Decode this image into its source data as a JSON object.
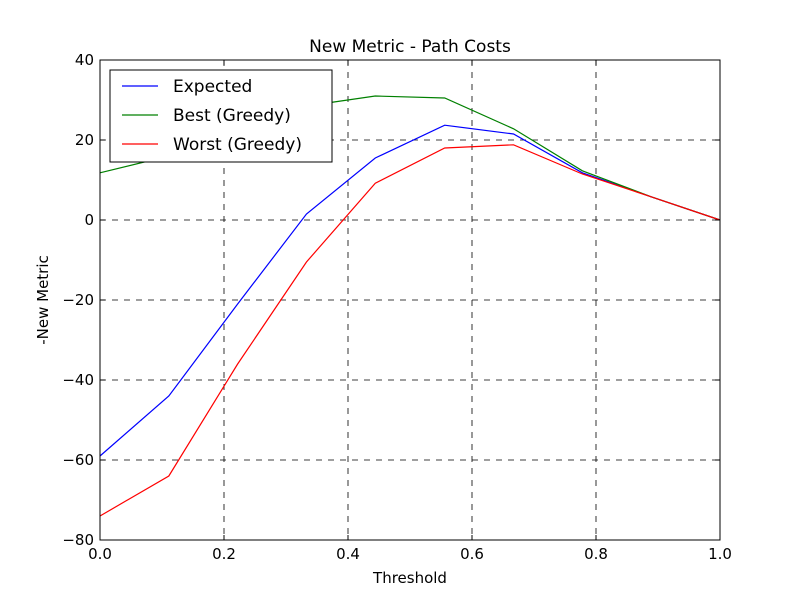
{
  "chart_data": {
    "type": "line",
    "title": "New Metric - Path Costs",
    "xlabel": "Threshold",
    "ylabel": "-New Metric",
    "xlim": [
      0.0,
      1.0
    ],
    "ylim": [
      -80,
      40
    ],
    "xticks": [
      "0.0",
      "0.2",
      "0.4",
      "0.6",
      "0.8",
      "1.0"
    ],
    "yticks": [
      "−80",
      "−60",
      "−40",
      "−20",
      "0",
      "20",
      "40"
    ],
    "grid": true,
    "legend_position": "top-left",
    "x": [
      0.0,
      0.111,
      0.222,
      0.333,
      0.444,
      0.556,
      0.667,
      0.778,
      0.889,
      1.0
    ],
    "series": [
      {
        "name": "Expected",
        "color": "#0000ff",
        "values": [
          -59,
          -44,
          -21,
          1.5,
          15.5,
          23.7,
          21.5,
          11.8,
          5.8,
          0
        ]
      },
      {
        "name": "Best (Greedy)",
        "color": "#008000",
        "values": [
          11.8,
          16,
          21,
          28.5,
          31,
          30.5,
          22.8,
          12.3,
          5.8,
          0
        ]
      },
      {
        "name": "Worst (Greedy)",
        "color": "#ff0000",
        "values": [
          -74,
          -64,
          -36,
          -10.5,
          9.2,
          18,
          18.8,
          11.5,
          5.8,
          0
        ]
      }
    ]
  }
}
